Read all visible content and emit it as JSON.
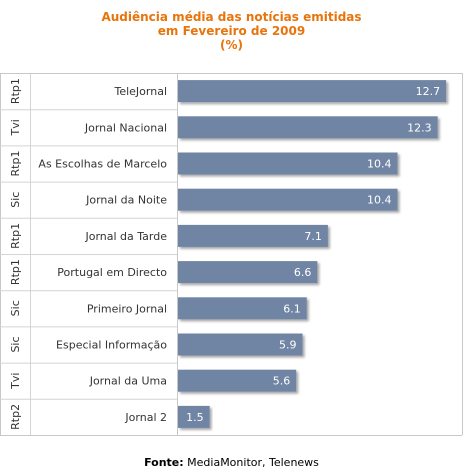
{
  "chart_data": {
    "type": "bar",
    "orientation": "horizontal",
    "title_lines": [
      "Audiência média das notícias emitidas",
      "em Fevereiro de 2009",
      "(%)"
    ],
    "rows": [
      {
        "channel": "Rtp1",
        "program": "TeleJornal",
        "value": 12.7
      },
      {
        "channel": "Tvi",
        "program": "Jornal Nacional",
        "value": 12.3
      },
      {
        "channel": "Rtp1",
        "program": "As Escolhas de Marcelo",
        "value": 10.4
      },
      {
        "channel": "Sic",
        "program": "Jornal da Noite",
        "value": 10.4
      },
      {
        "channel": "Rtp1",
        "program": "Jornal da Tarde",
        "value": 7.1
      },
      {
        "channel": "Rtp1",
        "program": "Portugal em Directo",
        "value": 6.6
      },
      {
        "channel": "Sic",
        "program": "Primeiro Jornal",
        "value": 6.1
      },
      {
        "channel": "Sic",
        "program": "Especial Informação",
        "value": 5.9
      },
      {
        "channel": "Tvi",
        "program": "Jornal da Uma",
        "value": 5.6
      },
      {
        "channel": "Rtp2",
        "program": "Jornal 2",
        "value": 1.5
      }
    ],
    "value_labels": [
      "12.7",
      "12.3",
      "10.4",
      "10.4",
      "7.1",
      "6.6",
      "6.1",
      "5.9",
      "5.6",
      "1.5"
    ],
    "xlim": [
      0,
      13.5
    ],
    "grid": false,
    "bar_color": "#6f84a3",
    "title_color": "#e8740c"
  },
  "source": {
    "label": "Fonte:",
    "text": " MediaMonitor, Telenews"
  }
}
